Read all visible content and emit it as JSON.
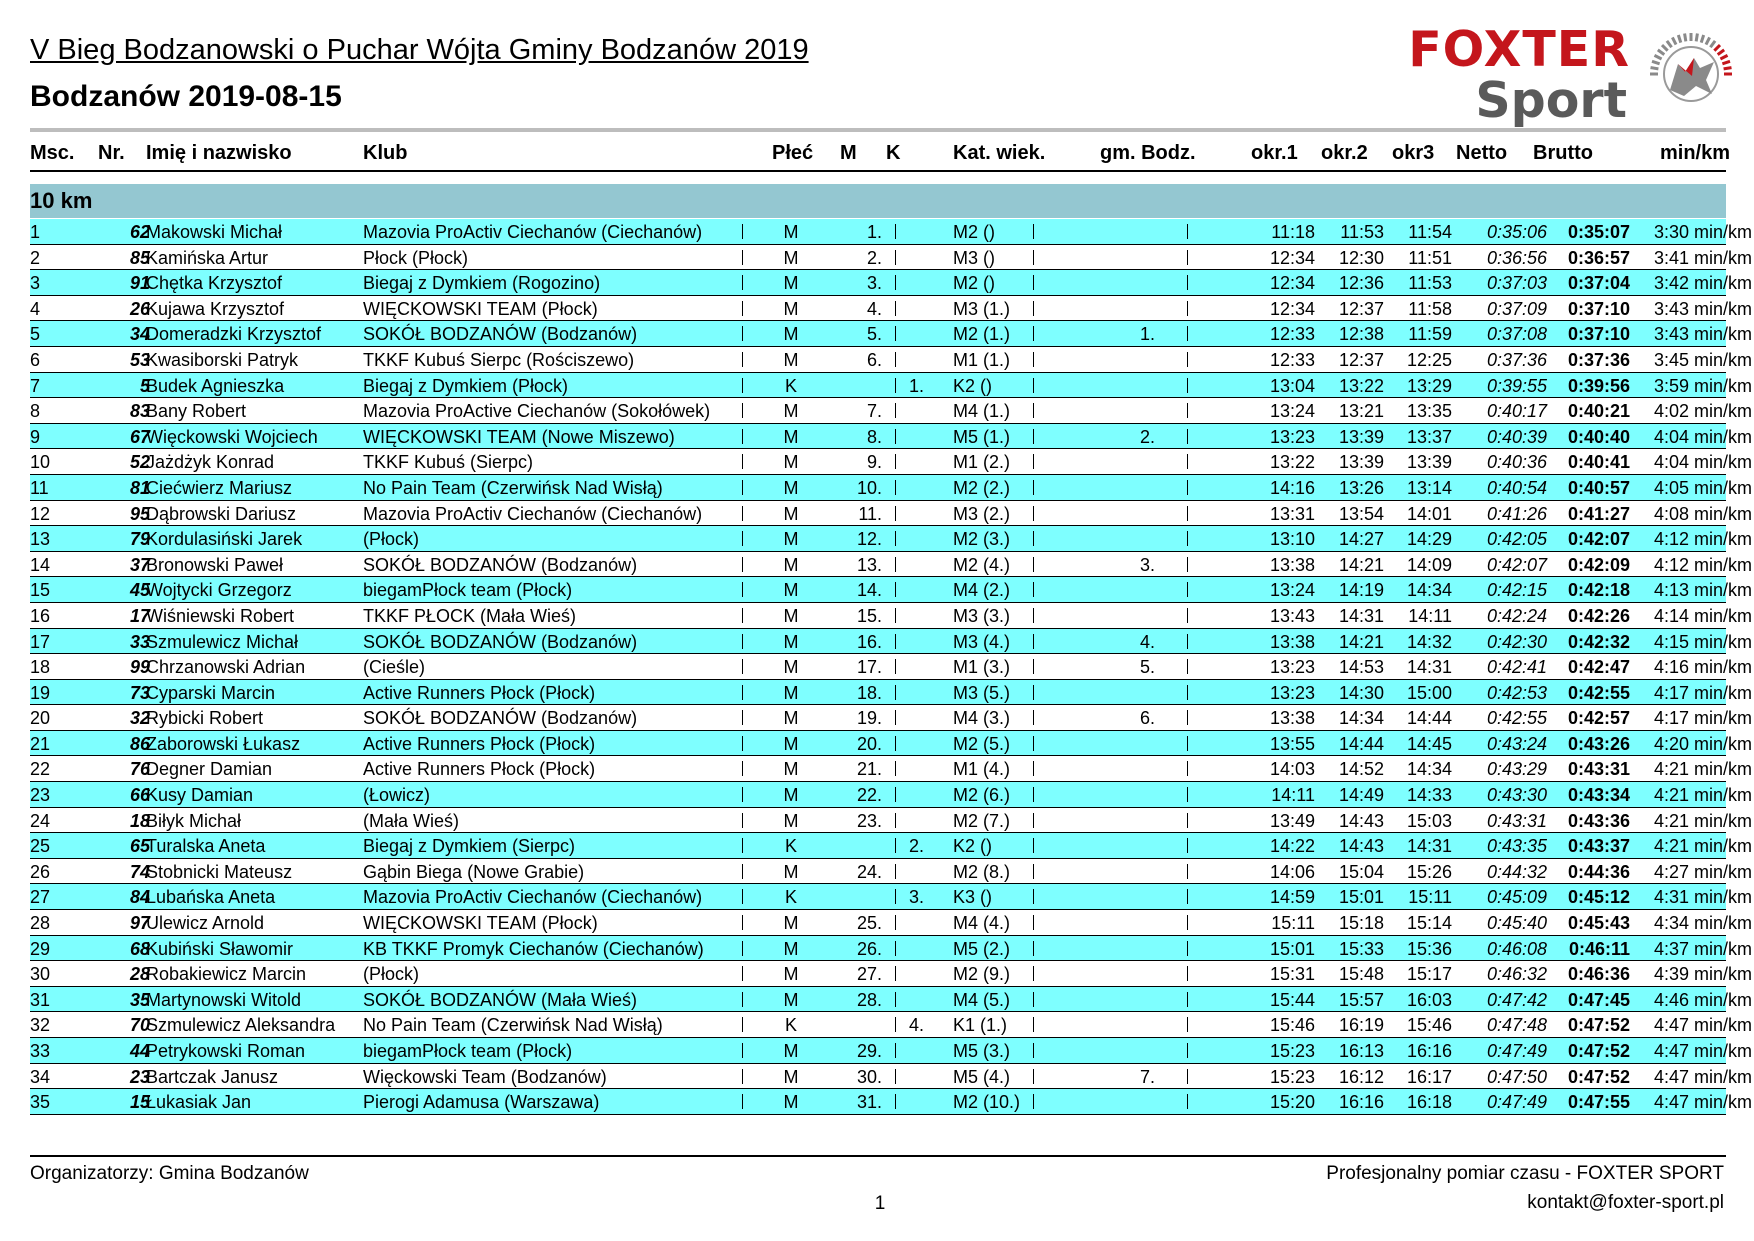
{
  "header": {
    "title": "V Bieg Bodzanowski o Puchar Wójta Gminy Bodzanów 2019",
    "subtitle": "Bodzanów 2019-08-15"
  },
  "logo": {
    "line1": "FOXTER",
    "line2": "Sport",
    "emblem_icon": "fox-speedometer-icon",
    "colors": {
      "red": "#c4161c",
      "gray": "#5a5a5a"
    }
  },
  "columns": {
    "msc": "Msc.",
    "nr": "Nr.",
    "name": "Imię i nazwisko",
    "club": "Klub",
    "sex": "Płeć",
    "m": "M",
    "k": "K",
    "kat": "Kat. wiek.",
    "gm": "gm. Bodz.",
    "okr1": "okr.1",
    "okr2": "okr.2",
    "okr3": "okr3",
    "netto": "Netto",
    "brutto": "Brutto",
    "pace": "min/km"
  },
  "section": {
    "label": "10 km",
    "color": "#94c7d1",
    "row_highlight": "#7effff"
  },
  "rows": [
    {
      "msc": "1",
      "nr": "62",
      "name": "Makowski Michał",
      "club": "Mazovia ProActiv Ciechanów (Ciechanów)",
      "sex": "M",
      "m": "1.",
      "k": "",
      "kat": "M2 ()",
      "gm": "",
      "okr1": "11:18",
      "okr2": "11:53",
      "okr3": "11:54",
      "netto": "0:35:06",
      "brutto": "0:35:07",
      "pace": "3:30 min/km"
    },
    {
      "msc": "2",
      "nr": "85",
      "name": "Kamińska Artur",
      "club": "Płock (Płock)",
      "sex": "M",
      "m": "2.",
      "k": "",
      "kat": "M3 ()",
      "gm": "",
      "okr1": "12:34",
      "okr2": "12:30",
      "okr3": "11:51",
      "netto": "0:36:56",
      "brutto": "0:36:57",
      "pace": "3:41 min/km"
    },
    {
      "msc": "3",
      "nr": "91",
      "name": "Chętka Krzysztof",
      "club": "Biegaj z Dymkiem (Rogozino)",
      "sex": "M",
      "m": "3.",
      "k": "",
      "kat": "M2 ()",
      "gm": "",
      "okr1": "12:34",
      "okr2": "12:36",
      "okr3": "11:53",
      "netto": "0:37:03",
      "brutto": "0:37:04",
      "pace": "3:42 min/km"
    },
    {
      "msc": "4",
      "nr": "26",
      "name": "Kujawa Krzysztof",
      "club": "WIĘCKOWSKI TEAM (Płock)",
      "sex": "M",
      "m": "4.",
      "k": "",
      "kat": "M3 (1.)",
      "gm": "",
      "okr1": "12:34",
      "okr2": "12:37",
      "okr3": "11:58",
      "netto": "0:37:09",
      "brutto": "0:37:10",
      "pace": "3:43 min/km"
    },
    {
      "msc": "5",
      "nr": "34",
      "name": "Domeradzki Krzysztof",
      "club": "SOKÓŁ BODZANÓW (Bodzanów)",
      "sex": "M",
      "m": "5.",
      "k": "",
      "kat": "M2 (1.)",
      "gm": "1.",
      "okr1": "12:33",
      "okr2": "12:38",
      "okr3": "11:59",
      "netto": "0:37:08",
      "brutto": "0:37:10",
      "pace": "3:43 min/km"
    },
    {
      "msc": "6",
      "nr": "53",
      "name": "Kwasiborski Patryk",
      "club": "TKKF Kubuś Sierpc (Rościszewo)",
      "sex": "M",
      "m": "6.",
      "k": "",
      "kat": "M1 (1.)",
      "gm": "",
      "okr1": "12:33",
      "okr2": "12:37",
      "okr3": "12:25",
      "netto": "0:37:36",
      "brutto": "0:37:36",
      "pace": "3:45 min/km"
    },
    {
      "msc": "7",
      "nr": "5",
      "name": "Budek Agnieszka",
      "club": "Biegaj z Dymkiem (Płock)",
      "sex": "K",
      "m": "",
      "k": "1.",
      "kat": "K2 ()",
      "gm": "",
      "okr1": "13:04",
      "okr2": "13:22",
      "okr3": "13:29",
      "netto": "0:39:55",
      "brutto": "0:39:56",
      "pace": "3:59 min/km"
    },
    {
      "msc": "8",
      "nr": "83",
      "name": "Bany Robert",
      "club": "Mazovia ProActive Ciechanów (Sokołówek)",
      "sex": "M",
      "m": "7.",
      "k": "",
      "kat": "M4 (1.)",
      "gm": "",
      "okr1": "13:24",
      "okr2": "13:21",
      "okr3": "13:35",
      "netto": "0:40:17",
      "brutto": "0:40:21",
      "pace": "4:02 min/km"
    },
    {
      "msc": "9",
      "nr": "67",
      "name": "Więckowski Wojciech",
      "club": "WIĘCKOWSKI TEAM (Nowe Miszewo)",
      "sex": "M",
      "m": "8.",
      "k": "",
      "kat": "M5 (1.)",
      "gm": "2.",
      "okr1": "13:23",
      "okr2": "13:39",
      "okr3": "13:37",
      "netto": "0:40:39",
      "brutto": "0:40:40",
      "pace": "4:04 min/km"
    },
    {
      "msc": "10",
      "nr": "52",
      "name": "Jażdżyk Konrad",
      "club": "TKKF Kubuś (Sierpc)",
      "sex": "M",
      "m": "9.",
      "k": "",
      "kat": "M1 (2.)",
      "gm": "",
      "okr1": "13:22",
      "okr2": "13:39",
      "okr3": "13:39",
      "netto": "0:40:36",
      "brutto": "0:40:41",
      "pace": "4:04 min/km"
    },
    {
      "msc": "11",
      "nr": "81",
      "name": "Ciećwierz Mariusz",
      "club": "No Pain Team (Czerwińsk Nad Wisłą)",
      "sex": "M",
      "m": "10.",
      "k": "",
      "kat": "M2 (2.)",
      "gm": "",
      "okr1": "14:16",
      "okr2": "13:26",
      "okr3": "13:14",
      "netto": "0:40:54",
      "brutto": "0:40:57",
      "pace": "4:05 min/km"
    },
    {
      "msc": "12",
      "nr": "95",
      "name": "Dąbrowski Dariusz",
      "club": "Mazovia ProActiv Ciechanów (Ciechanów)",
      "sex": "M",
      "m": "11.",
      "k": "",
      "kat": "M3 (2.)",
      "gm": "",
      "okr1": "13:31",
      "okr2": "13:54",
      "okr3": "14:01",
      "netto": "0:41:26",
      "brutto": "0:41:27",
      "pace": "4:08 min/km"
    },
    {
      "msc": "13",
      "nr": "79",
      "name": "Kordulasiński Jarek",
      "club": "(Płock)",
      "sex": "M",
      "m": "12.",
      "k": "",
      "kat": "M2 (3.)",
      "gm": "",
      "okr1": "13:10",
      "okr2": "14:27",
      "okr3": "14:29",
      "netto": "0:42:05",
      "brutto": "0:42:07",
      "pace": "4:12 min/km"
    },
    {
      "msc": "14",
      "nr": "37",
      "name": "Bronowski Paweł",
      "club": "SOKÓŁ BODZANÓW (Bodzanów)",
      "sex": "M",
      "m": "13.",
      "k": "",
      "kat": "M2 (4.)",
      "gm": "3.",
      "okr1": "13:38",
      "okr2": "14:21",
      "okr3": "14:09",
      "netto": "0:42:07",
      "brutto": "0:42:09",
      "pace": "4:12 min/km"
    },
    {
      "msc": "15",
      "nr": "45",
      "name": "Wojtycki Grzegorz",
      "club": "biegamPłock team (Płock)",
      "sex": "M",
      "m": "14.",
      "k": "",
      "kat": "M4 (2.)",
      "gm": "",
      "okr1": "13:24",
      "okr2": "14:19",
      "okr3": "14:34",
      "netto": "0:42:15",
      "brutto": "0:42:18",
      "pace": "4:13 min/km"
    },
    {
      "msc": "16",
      "nr": "17",
      "name": "Wiśniewski Robert",
      "club": "TKKF PŁOCK (Mała Wieś)",
      "sex": "M",
      "m": "15.",
      "k": "",
      "kat": "M3 (3.)",
      "gm": "",
      "okr1": "13:43",
      "okr2": "14:31",
      "okr3": "14:11",
      "netto": "0:42:24",
      "brutto": "0:42:26",
      "pace": "4:14 min/km"
    },
    {
      "msc": "17",
      "nr": "33",
      "name": "Szmulewicz Michał",
      "club": "SOKÓŁ BODZANÓW (Bodzanów)",
      "sex": "M",
      "m": "16.",
      "k": "",
      "kat": "M3 (4.)",
      "gm": "4.",
      "okr1": "13:38",
      "okr2": "14:21",
      "okr3": "14:32",
      "netto": "0:42:30",
      "brutto": "0:42:32",
      "pace": "4:15 min/km"
    },
    {
      "msc": "18",
      "nr": "99",
      "name": "Chrzanowski Adrian",
      "club": "(Cieśle)",
      "sex": "M",
      "m": "17.",
      "k": "",
      "kat": "M1 (3.)",
      "gm": "5.",
      "okr1": "13:23",
      "okr2": "14:53",
      "okr3": "14:31",
      "netto": "0:42:41",
      "brutto": "0:42:47",
      "pace": "4:16 min/km"
    },
    {
      "msc": "19",
      "nr": "73",
      "name": "Cyparski Marcin",
      "club": "Active Runners Płock (Płock)",
      "sex": "M",
      "m": "18.",
      "k": "",
      "kat": "M3 (5.)",
      "gm": "",
      "okr1": "13:23",
      "okr2": "14:30",
      "okr3": "15:00",
      "netto": "0:42:53",
      "brutto": "0:42:55",
      "pace": "4:17 min/km"
    },
    {
      "msc": "20",
      "nr": "32",
      "name": "Rybicki Robert",
      "club": "SOKÓŁ BODZANÓW (Bodzanów)",
      "sex": "M",
      "m": "19.",
      "k": "",
      "kat": "M4 (3.)",
      "gm": "6.",
      "okr1": "13:38",
      "okr2": "14:34",
      "okr3": "14:44",
      "netto": "0:42:55",
      "brutto": "0:42:57",
      "pace": "4:17 min/km"
    },
    {
      "msc": "21",
      "nr": "86",
      "name": "Zaborowski Łukasz",
      "club": "Active Runners Płock (Płock)",
      "sex": "M",
      "m": "20.",
      "k": "",
      "kat": "M2 (5.)",
      "gm": "",
      "okr1": "13:55",
      "okr2": "14:44",
      "okr3": "14:45",
      "netto": "0:43:24",
      "brutto": "0:43:26",
      "pace": "4:20 min/km"
    },
    {
      "msc": "22",
      "nr": "76",
      "name": "Degner Damian",
      "club": "Active Runners Płock (Płock)",
      "sex": "M",
      "m": "21.",
      "k": "",
      "kat": "M1 (4.)",
      "gm": "",
      "okr1": "14:03",
      "okr2": "14:52",
      "okr3": "14:34",
      "netto": "0:43:29",
      "brutto": "0:43:31",
      "pace": "4:21 min/km"
    },
    {
      "msc": "23",
      "nr": "66",
      "name": "Kusy Damian",
      "club": "(Łowicz)",
      "sex": "M",
      "m": "22.",
      "k": "",
      "kat": "M2 (6.)",
      "gm": "",
      "okr1": "14:11",
      "okr2": "14:49",
      "okr3": "14:33",
      "netto": "0:43:30",
      "brutto": "0:43:34",
      "pace": "4:21 min/km"
    },
    {
      "msc": "24",
      "nr": "18",
      "name": "Biłyk Michał",
      "club": "(Mała Wieś)",
      "sex": "M",
      "m": "23.",
      "k": "",
      "kat": "M2 (7.)",
      "gm": "",
      "okr1": "13:49",
      "okr2": "14:43",
      "okr3": "15:03",
      "netto": "0:43:31",
      "brutto": "0:43:36",
      "pace": "4:21 min/km"
    },
    {
      "msc": "25",
      "nr": "65",
      "name": "Turalska Aneta",
      "club": "Biegaj z Dymkiem (Sierpc)",
      "sex": "K",
      "m": "",
      "k": "2.",
      "kat": "K2 ()",
      "gm": "",
      "okr1": "14:22",
      "okr2": "14:43",
      "okr3": "14:31",
      "netto": "0:43:35",
      "brutto": "0:43:37",
      "pace": "4:21 min/km"
    },
    {
      "msc": "26",
      "nr": "74",
      "name": "Stobnicki Mateusz",
      "club": "Gąbin Biega (Nowe Grabie)",
      "sex": "M",
      "m": "24.",
      "k": "",
      "kat": "M2 (8.)",
      "gm": "",
      "okr1": "14:06",
      "okr2": "15:04",
      "okr3": "15:26",
      "netto": "0:44:32",
      "brutto": "0:44:36",
      "pace": "4:27 min/km"
    },
    {
      "msc": "27",
      "nr": "84",
      "name": "Lubańska Aneta",
      "club": "Mazovia ProActiv Ciechanów (Ciechanów)",
      "sex": "K",
      "m": "",
      "k": "3.",
      "kat": "K3 ()",
      "gm": "",
      "okr1": "14:59",
      "okr2": "15:01",
      "okr3": "15:11",
      "netto": "0:45:09",
      "brutto": "0:45:12",
      "pace": "4:31 min/km"
    },
    {
      "msc": "28",
      "nr": "97",
      "name": "Ulewicz Arnold",
      "club": "WIĘCKOWSKI TEAM (Płock)",
      "sex": "M",
      "m": "25.",
      "k": "",
      "kat": "M4 (4.)",
      "gm": "",
      "okr1": "15:11",
      "okr2": "15:18",
      "okr3": "15:14",
      "netto": "0:45:40",
      "brutto": "0:45:43",
      "pace": "4:34 min/km"
    },
    {
      "msc": "29",
      "nr": "68",
      "name": "Kubiński Sławomir",
      "club": "KB TKKF Promyk Ciechanów (Ciechanów)",
      "sex": "M",
      "m": "26.",
      "k": "",
      "kat": "M5 (2.)",
      "gm": "",
      "okr1": "15:01",
      "okr2": "15:33",
      "okr3": "15:36",
      "netto": "0:46:08",
      "brutto": "0:46:11",
      "pace": "4:37 min/km"
    },
    {
      "msc": "30",
      "nr": "28",
      "name": "Robakiewicz Marcin",
      "club": "(Płock)",
      "sex": "M",
      "m": "27.",
      "k": "",
      "kat": "M2 (9.)",
      "gm": "",
      "okr1": "15:31",
      "okr2": "15:48",
      "okr3": "15:17",
      "netto": "0:46:32",
      "brutto": "0:46:36",
      "pace": "4:39 min/km"
    },
    {
      "msc": "31",
      "nr": "35",
      "name": "Martynowski Witold",
      "club": "SOKÓŁ BODZANÓW (Mała Wieś)",
      "sex": "M",
      "m": "28.",
      "k": "",
      "kat": "M4 (5.)",
      "gm": "",
      "okr1": "15:44",
      "okr2": "15:57",
      "okr3": "16:03",
      "netto": "0:47:42",
      "brutto": "0:47:45",
      "pace": "4:46 min/km"
    },
    {
      "msc": "32",
      "nr": "70",
      "name": "Szmulewicz Aleksandra",
      "club": "No Pain Team (Czerwińsk Nad Wisłą)",
      "sex": "K",
      "m": "",
      "k": "4.",
      "kat": "K1 (1.)",
      "gm": "",
      "okr1": "15:46",
      "okr2": "16:19",
      "okr3": "15:46",
      "netto": "0:47:48",
      "brutto": "0:47:52",
      "pace": "4:47 min/km"
    },
    {
      "msc": "33",
      "nr": "44",
      "name": "Petrykowski Roman",
      "club": "biegamPłock team (Płock)",
      "sex": "M",
      "m": "29.",
      "k": "",
      "kat": "M5 (3.)",
      "gm": "",
      "okr1": "15:23",
      "okr2": "16:13",
      "okr3": "16:16",
      "netto": "0:47:49",
      "brutto": "0:47:52",
      "pace": "4:47 min/km"
    },
    {
      "msc": "34",
      "nr": "23",
      "name": "Bartczak Janusz",
      "club": "Więckowski Team (Bodzanów)",
      "sex": "M",
      "m": "30.",
      "k": "",
      "kat": "M5 (4.)",
      "gm": "7.",
      "okr1": "15:23",
      "okr2": "16:12",
      "okr3": "16:17",
      "netto": "0:47:50",
      "brutto": "0:47:52",
      "pace": "4:47 min/km"
    },
    {
      "msc": "35",
      "nr": "15",
      "name": "Łukasiak Jan",
      "club": "Pierogi Adamusa (Warszawa)",
      "sex": "M",
      "m": "31.",
      "k": "",
      "kat": "M2 (10.)",
      "gm": "",
      "okr1": "15:20",
      "okr2": "16:16",
      "okr3": "16:18",
      "netto": "0:47:49",
      "brutto": "0:47:55",
      "pace": "4:47 min/km"
    }
  ],
  "footer": {
    "organizers": "Organizatorzy:  Gmina Bodzanów",
    "page": "1",
    "timing": "Profesjonalny pomiar czasu - FOXTER SPORT",
    "contact": "kontakt@foxter-sport.pl"
  }
}
